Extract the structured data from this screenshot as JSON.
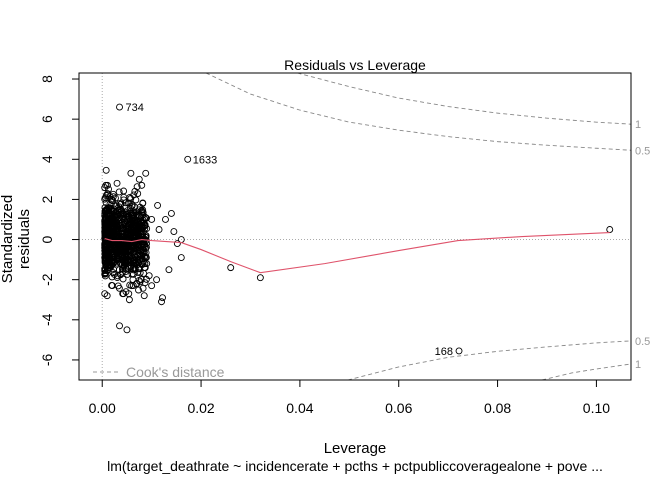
{
  "chart_data": {
    "type": "scatter",
    "title": "Residuals vs Leverage",
    "xlabel": "Leverage",
    "ylabel": "Standardized residuals",
    "caption": "lm(target_deathrate ~ incidencerate + pcths + pctpubliccoveragealone + pove ...",
    "xlim": [
      -0.0047,
      0.107
    ],
    "ylim": [
      -7.0,
      8.3
    ],
    "x_ticks": [
      0.0,
      0.02,
      0.04,
      0.06,
      0.08,
      0.1
    ],
    "x_tick_labels": [
      "0.00",
      "0.02",
      "0.04",
      "0.06",
      "0.08",
      "0.10"
    ],
    "y_ticks": [
      -6,
      -4,
      -2,
      0,
      2,
      4,
      6,
      8
    ],
    "y_tick_labels": [
      "-6",
      "-4",
      "-2",
      "0",
      "2",
      "4",
      "6",
      "8"
    ],
    "labeled_points": [
      {
        "label": "734",
        "x": 0.0035,
        "y": 6.6
      },
      {
        "label": "1633",
        "x": 0.0173,
        "y": 4.0
      },
      {
        "label": "168",
        "x": 0.0722,
        "y": -5.55
      }
    ],
    "outlier_points": [
      {
        "x": 0.1027,
        "y": 0.5
      },
      {
        "x": 0.032,
        "y": -1.9
      },
      {
        "x": 0.026,
        "y": -1.4
      },
      {
        "x": 0.0122,
        "y": -2.9
      },
      {
        "x": 0.012,
        "y": -3.1
      },
      {
        "x": 0.0035,
        "y": -4.3
      },
      {
        "x": 0.005,
        "y": -4.5
      },
      {
        "x": 0.014,
        "y": 1.3
      },
      {
        "x": 0.016,
        "y": -0.9
      },
      {
        "x": 0.0152,
        "y": -0.2
      },
      {
        "x": 0.0145,
        "y": 0.4
      },
      {
        "x": 0.016,
        "y": 0.0
      },
      {
        "x": 0.0135,
        "y": -1.5
      },
      {
        "x": 0.0128,
        "y": 1.0
      },
      {
        "x": 0.0112,
        "y": 1.7
      },
      {
        "x": 0.011,
        "y": -2.0
      },
      {
        "x": 0.01,
        "y": -2.3
      },
      {
        "x": 0.0088,
        "y": 3.3
      },
      {
        "x": 0.0075,
        "y": 3.0
      },
      {
        "x": 0.0058,
        "y": 3.3
      },
      {
        "x": 0.0008,
        "y": 3.45
      },
      {
        "x": 0.001,
        "y": -2.8
      },
      {
        "x": 0.0095,
        "y": -1.8
      },
      {
        "x": 0.01,
        "y": 1.0
      },
      {
        "x": 0.0055,
        "y": -3.0
      },
      {
        "x": 0.0048,
        "y": -2.6
      },
      {
        "x": 0.007,
        "y": -2.2
      },
      {
        "x": 0.003,
        "y": 2.8
      },
      {
        "x": 0.0066,
        "y": 2.4
      },
      {
        "x": 0.009,
        "y": -1.2
      },
      {
        "x": 0.0082,
        "y": 1.8
      },
      {
        "x": 0.0115,
        "y": 0.5
      },
      {
        "x": 0.0085,
        "y": -2.8
      }
    ],
    "bulk_cluster": {
      "x_min": 0.0005,
      "x_max": 0.009,
      "y_min": -2.7,
      "y_max": 2.7,
      "count": 900
    },
    "smoother_line": {
      "color": "#DF536B",
      "x": [
        0.0005,
        0.002,
        0.004,
        0.006,
        0.008,
        0.01,
        0.013,
        0.016,
        0.02,
        0.026,
        0.032,
        0.045,
        0.06,
        0.072,
        0.085,
        0.1027
      ],
      "y": [
        0.05,
        -0.05,
        -0.05,
        -0.1,
        0.0,
        -0.05,
        -0.1,
        -0.15,
        -0.5,
        -1.1,
        -1.65,
        -1.2,
        -0.55,
        -0.05,
        0.15,
        0.35
      ]
    },
    "cooks_distance": {
      "legend_label": "Cook's distance",
      "contour_labels": [
        "1",
        "0.5",
        "0.5",
        "1"
      ],
      "levels": [
        {
          "label": "1",
          "sign": 1,
          "x": [
            0.0395,
            0.05,
            0.06,
            0.07,
            0.08,
            0.09,
            0.1,
            0.107
          ],
          "y": [
            8.3,
            7.62,
            7.05,
            6.63,
            6.3,
            6.05,
            5.85,
            5.75
          ]
        },
        {
          "label": "0.5",
          "sign": 1,
          "x": [
            0.021,
            0.03,
            0.04,
            0.05,
            0.06,
            0.07,
            0.08,
            0.09,
            0.1,
            0.107
          ],
          "y": [
            8.3,
            7.25,
            6.45,
            5.85,
            5.45,
            5.13,
            4.88,
            4.7,
            4.55,
            4.45
          ]
        },
        {
          "label": "0.5",
          "sign": -1,
          "x": [
            0.0497,
            0.06,
            0.07,
            0.08,
            0.09,
            0.1,
            0.107
          ],
          "y": [
            -7.0,
            -6.35,
            -5.87,
            -5.57,
            -5.35,
            -5.15,
            -5.05
          ]
        },
        {
          "label": "1",
          "sign": -1,
          "x": [
            0.089,
            0.095,
            0.1,
            0.107
          ],
          "y": [
            -7.0,
            -6.65,
            -6.45,
            -6.2
          ]
        }
      ]
    }
  }
}
